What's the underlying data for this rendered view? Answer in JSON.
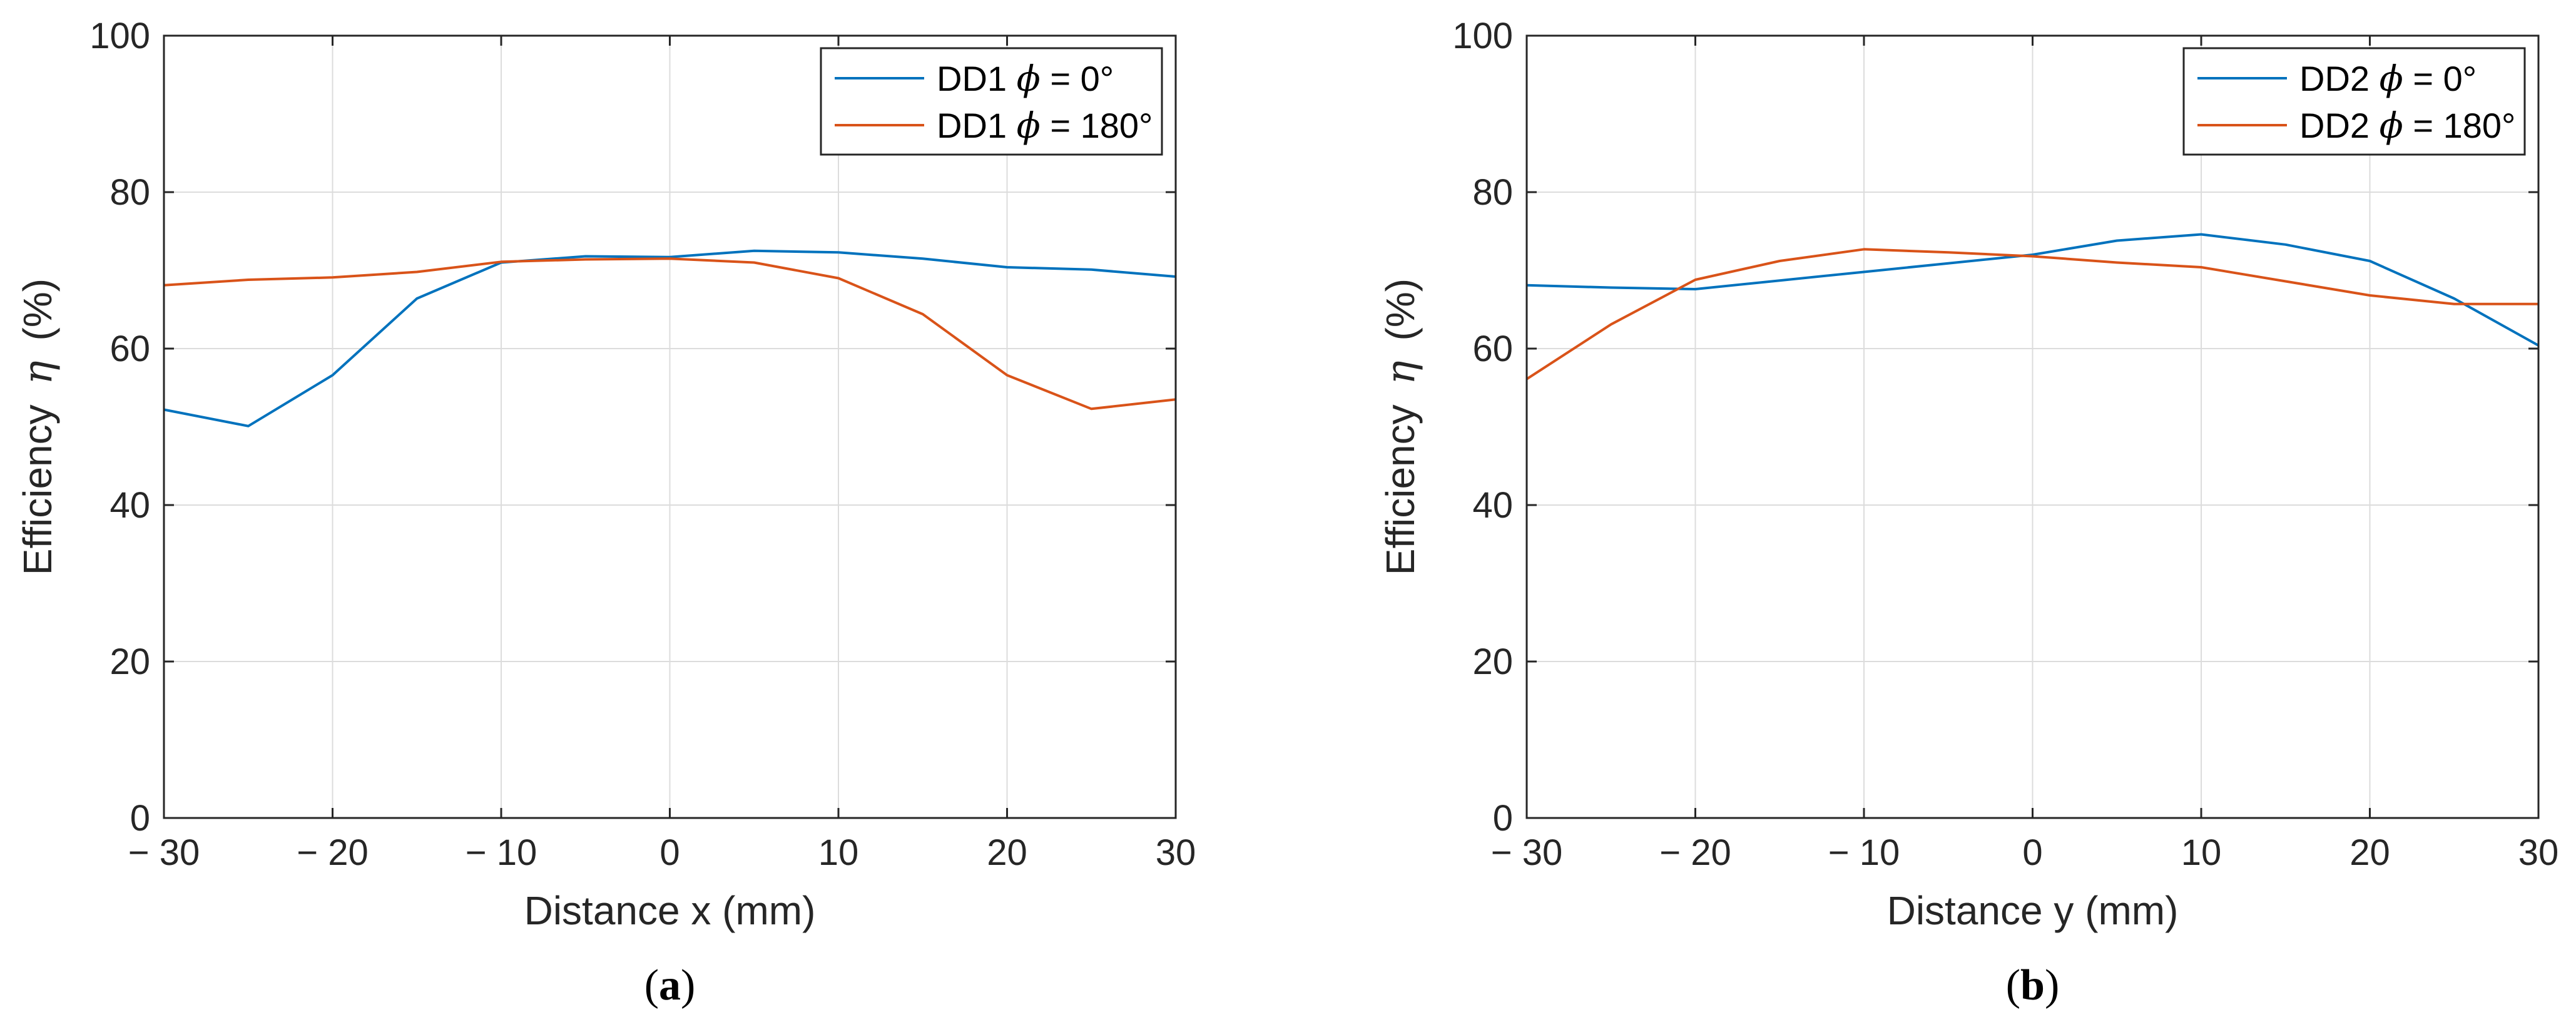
{
  "chart_data": [
    {
      "type": "line",
      "panel_label": "a",
      "xlabel": "Distance x (mm)",
      "ylabel_prefix": "Efficiency",
      "ylabel_symbol": "η",
      "ylabel_suffix": "(%)",
      "xlim": [
        -30,
        30
      ],
      "ylim": [
        0,
        100
      ],
      "xticks": [
        -30,
        -20,
        -10,
        0,
        10,
        20,
        30
      ],
      "xtick_labels": [
        "− 30",
        "− 20",
        "− 10",
        "0",
        "10",
        "20",
        "30"
      ],
      "yticks": [
        0,
        20,
        40,
        60,
        80,
        100
      ],
      "ytick_labels": [
        "0",
        "20",
        "40",
        "60",
        "80",
        "100"
      ],
      "grid": true,
      "legend_position": "top-right",
      "x": [
        -30,
        -25,
        -20,
        -15,
        -10,
        -5,
        0,
        5,
        10,
        15,
        20,
        25,
        30
      ],
      "series": [
        {
          "name": "DD1 ϕ = 0°",
          "label_prefix": "DD1",
          "label_symbol": "ϕ",
          "label_suffix": "= 0°",
          "color": "#0072BD",
          "values": [
            52.2,
            50.1,
            56.6,
            66.4,
            71.0,
            71.8,
            71.7,
            72.5,
            72.3,
            71.5,
            70.4,
            70.1,
            69.2
          ]
        },
        {
          "name": "DD1 ϕ = 180°",
          "label_prefix": "DD1",
          "label_symbol": "ϕ",
          "label_suffix": "= 180°",
          "color": "#D95319",
          "values": [
            68.1,
            68.8,
            69.1,
            69.8,
            71.1,
            71.4,
            71.5,
            71.0,
            69.0,
            64.4,
            56.6,
            52.3,
            53.5
          ]
        }
      ]
    },
    {
      "type": "line",
      "panel_label": "b",
      "xlabel": "Distance y (mm)",
      "ylabel_prefix": "Efficiency",
      "ylabel_symbol": "η",
      "ylabel_suffix": "(%)",
      "xlim": [
        -30,
        30
      ],
      "ylim": [
        0,
        100
      ],
      "xticks": [
        -30,
        -20,
        -10,
        0,
        10,
        20,
        30
      ],
      "xtick_labels": [
        "− 30",
        "− 20",
        "− 10",
        "0",
        "10",
        "20",
        "30"
      ],
      "yticks": [
        0,
        20,
        40,
        60,
        80,
        100
      ],
      "ytick_labels": [
        "0",
        "20",
        "40",
        "60",
        "80",
        "100"
      ],
      "grid": true,
      "legend_position": "top-right",
      "x": [
        -30,
        -25,
        -20,
        -15,
        -10,
        -5,
        0,
        5,
        10,
        15,
        20,
        25,
        30
      ],
      "series": [
        {
          "name": "DD2 ϕ = 0°",
          "label_prefix": "DD2",
          "label_symbol": "ϕ",
          "label_suffix": "= 0°",
          "color": "#0072BD",
          "values": [
            68.1,
            67.8,
            67.6,
            68.7,
            69.8,
            70.9,
            72.0,
            73.8,
            74.6,
            73.3,
            71.2,
            66.4,
            60.4
          ]
        },
        {
          "name": "DD2 ϕ = 180°",
          "label_prefix": "DD2",
          "label_symbol": "ϕ",
          "label_suffix": "= 180°",
          "color": "#D95319",
          "values": [
            56.1,
            63.1,
            68.8,
            71.2,
            72.7,
            72.3,
            71.8,
            71.0,
            70.4,
            68.6,
            66.8,
            65.7,
            65.7
          ]
        }
      ]
    }
  ]
}
